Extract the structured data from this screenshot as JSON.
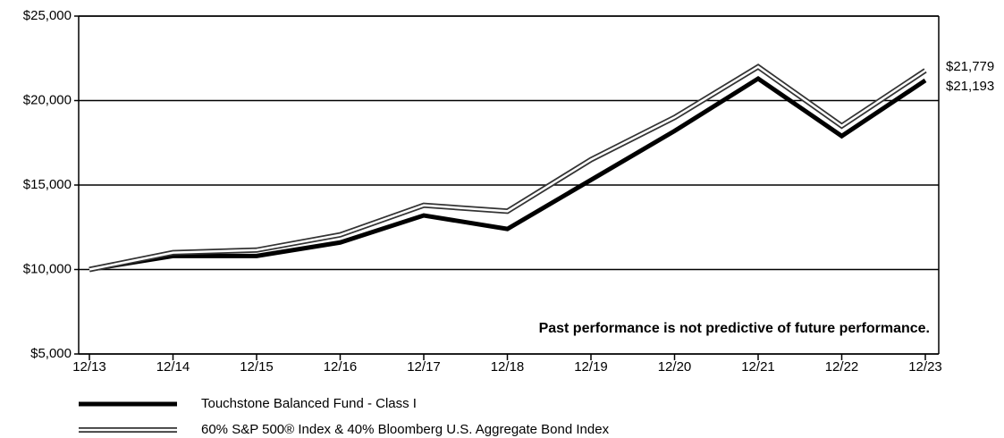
{
  "chart_data": {
    "type": "line",
    "categories": [
      "12/13",
      "12/14",
      "12/15",
      "12/16",
      "12/17",
      "12/18",
      "12/19",
      "12/20",
      "12/21",
      "12/22",
      "12/23"
    ],
    "series": [
      {
        "name": "Touchstone Balanced Fund - Class I",
        "color": "#000000",
        "style": "solid",
        "values": [
          10000,
          10800,
          10800,
          11600,
          13200,
          12400,
          15300,
          18200,
          21300,
          17900,
          21193
        ],
        "value_labels": [
          null,
          null,
          null,
          null,
          null,
          null,
          null,
          null,
          null,
          null,
          "$21,193"
        ]
      },
      {
        "name": "60% S&P 500® Index & 40% Bloomberg U.S. Aggregate Bond Index",
        "color": "#333333",
        "style": "double",
        "values": [
          10000,
          11000,
          11150,
          12050,
          13800,
          13450,
          16500,
          19000,
          22000,
          18500,
          21779
        ],
        "value_labels": [
          null,
          null,
          null,
          null,
          null,
          null,
          null,
          null,
          null,
          null,
          "$21,779"
        ]
      }
    ],
    "ylim": [
      5000,
      25000
    ],
    "yticks": [
      {
        "value": 5000,
        "label": "$5,000"
      },
      {
        "value": 10000,
        "label": "$10,000"
      },
      {
        "value": 15000,
        "label": "$15,000"
      },
      {
        "value": 20000,
        "label": "$20,000"
      },
      {
        "value": 25000,
        "label": "$25,000"
      }
    ],
    "grid": true,
    "annotation": "Past performance is not predictive of future performance."
  }
}
